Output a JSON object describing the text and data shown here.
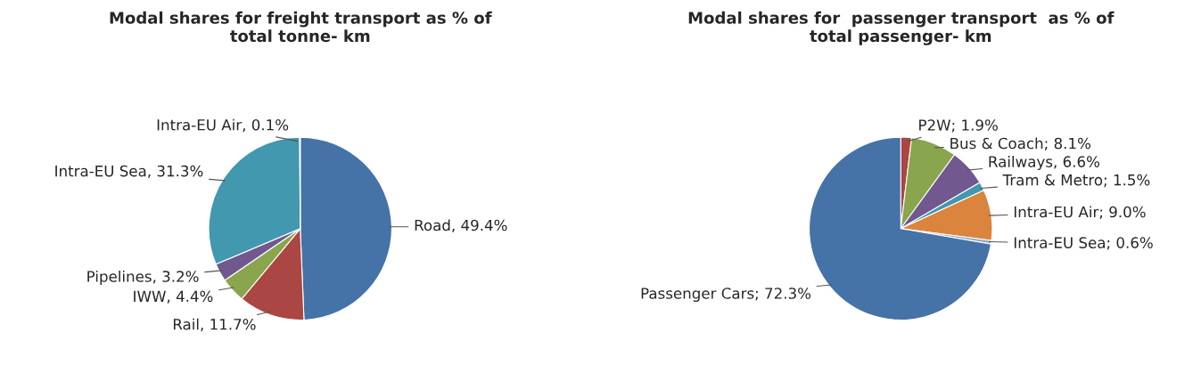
{
  "chart_data": [
    {
      "type": "pie",
      "title": "Modal shares for freight transport as % of\ntotal tonne- km",
      "categories": [
        "Road",
        "Rail",
        "IWW",
        "Pipelines",
        "Intra-EU Sea",
        "Intra-EU Air"
      ],
      "values": [
        49.4,
        11.7,
        4.4,
        3.2,
        31.3,
        0.1
      ],
      "value_labels": [
        "49.4%",
        "11.7%",
        "4.4%",
        "3.2%",
        "31.3%",
        "0.1%"
      ],
      "colors": [
        "#4572a7",
        "#aa4643",
        "#89a54e",
        "#71588f",
        "#4198af",
        "#db843d"
      ]
    },
    {
      "type": "pie",
      "title": "Modal shares for  passenger transport  as % of\ntotal passenger- km",
      "categories": [
        "P2W",
        "Bus & Coach",
        "Railways",
        "Tram & Metro",
        "Intra-EU Air",
        "Intra-EU Sea",
        "Passenger Cars"
      ],
      "values": [
        1.9,
        8.1,
        6.6,
        1.5,
        9.0,
        0.6,
        72.3
      ],
      "value_labels": [
        "1.9%",
        "8.1%",
        "6.6%",
        "1.5%",
        "9.0%",
        "0.6%",
        "72.3%"
      ],
      "colors": [
        "#aa4643",
        "#89a54e",
        "#71588f",
        "#4198af",
        "#db843d",
        "#93a9cf",
        "#4572a7"
      ]
    }
  ]
}
